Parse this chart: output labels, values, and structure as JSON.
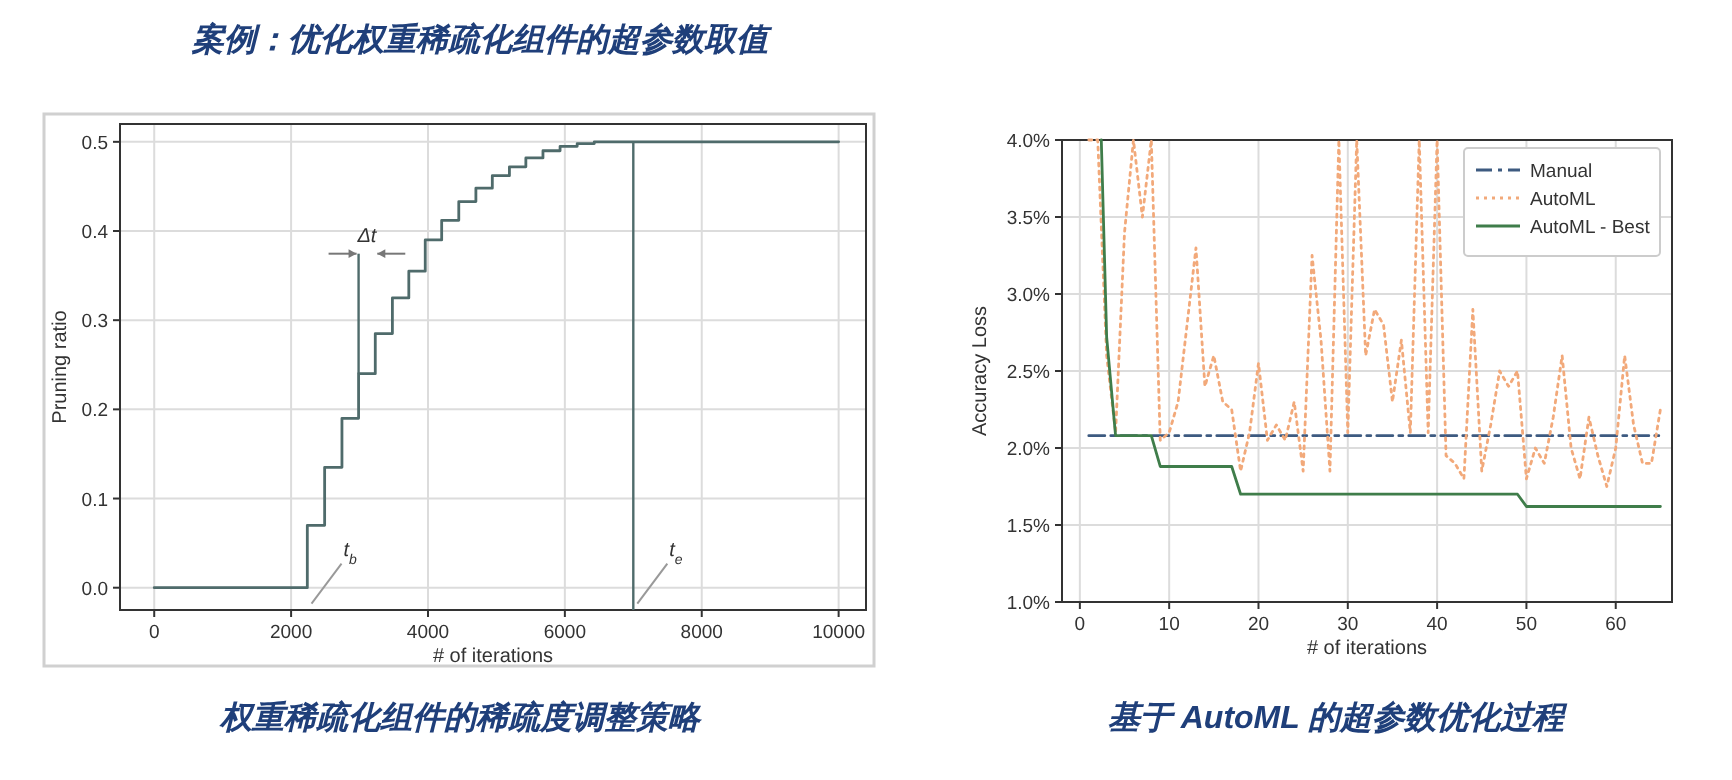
{
  "chart_data": [
    {
      "type": "step",
      "title": "案例：优化权重稀疏化组件的超参数取值",
      "subtitle": "权重稀疏化组件的稀疏度调整策略",
      "xlabel": "# of iterations",
      "ylabel": "Pruning ratio",
      "xlim": [
        -500,
        10400
      ],
      "ylim": [
        -0.025,
        0.52
      ],
      "xticks": [
        0,
        2000,
        4000,
        6000,
        8000,
        10000
      ],
      "yticks": [
        {
          "value": 0,
          "label": "0.0"
        },
        0.1,
        0.2,
        0.3,
        0.4,
        0.5
      ],
      "grid": true,
      "line_style": "solid",
      "series": [
        {
          "color": "#4f6b6b",
          "x": [
            0,
            2237,
            2490,
            2743,
            2986,
            3230,
            3480,
            3720,
            3960,
            4200,
            4450,
            4700,
            4940,
            5190,
            5430,
            5680,
            5930,
            6180,
            6430,
            10000
          ],
          "values": [
            0,
            0.07,
            0.135,
            0.19,
            0.24,
            0.285,
            0.325,
            0.355,
            0.39,
            0.412,
            0.433,
            0.448,
            0.462,
            0.472,
            0.482,
            0.49,
            0.495,
            0.498,
            0.5,
            0.5
          ]
        }
      ],
      "ref_lines": [
        {
          "axis": "x",
          "value": 7000,
          "color": "#4f6b6b"
        }
      ],
      "annotations": [
        {
          "text": "t$_{b}$",
          "x": 2240,
          "y": 0
        },
        {
          "text": "t$_{e}$",
          "x": 7000,
          "y": 0
        },
        {
          "text": "Δt",
          "x": 2986,
          "y": 0.24
        }
      ]
    },
    {
      "type": "line",
      "title": "基于 AutoML 的超参数优化过程",
      "xlabel": "# of iterations",
      "ylabel": "Accuracy Loss",
      "xlim": [
        -2,
        66.3
      ],
      "ylim": [
        1.0,
        4.0
      ],
      "xticks": [
        0,
        10,
        20,
        30,
        40,
        50,
        60
      ],
      "yticks": [
        {
          "value": 1.0,
          "label": "1.0%"
        },
        {
          "value": 1.5,
          "label": "1.5%"
        },
        {
          "value": 2.0,
          "label": "2.0%"
        },
        {
          "value": 2.5,
          "label": "2.5%"
        },
        {
          "value": 3.0,
          "label": "3.0%"
        },
        {
          "value": 3.5,
          "label": "3.5%"
        },
        {
          "value": 4.0,
          "label": "4.0%"
        }
      ],
      "grid": true,
      "legend": "top right",
      "series": [
        {
          "name": "Manual",
          "color": "#3d5a80",
          "line_style": "dashdot",
          "x": [
            1,
            65
          ],
          "values": [
            2.08,
            2.08
          ]
        },
        {
          "name": "AutoML",
          "color": "#f2a97a",
          "line_style": "dotted",
          "x": [
            1,
            2,
            3,
            4,
            5,
            6,
            7,
            8,
            9,
            10,
            11,
            12,
            13,
            14,
            15,
            16,
            17,
            18,
            19,
            20,
            21,
            22,
            23,
            24,
            25,
            26,
            27,
            28,
            29,
            30,
            31,
            32,
            33,
            34,
            35,
            36,
            37,
            38,
            39,
            40,
            41,
            42,
            43,
            44,
            45,
            46,
            47,
            48,
            49,
            50,
            51,
            52,
            53,
            54,
            55,
            56,
            57,
            58,
            59,
            60,
            61,
            62,
            63,
            64,
            65
          ],
          "values": [
            4.0,
            4.0,
            2.6,
            2.1,
            3.4,
            4.0,
            3.5,
            4.0,
            2.05,
            2.1,
            2.3,
            2.8,
            3.3,
            2.4,
            2.6,
            2.3,
            2.25,
            1.85,
            2.1,
            2.55,
            2.05,
            2.15,
            2.05,
            2.3,
            1.85,
            3.25,
            2.7,
            1.85,
            4.0,
            2.1,
            4.0,
            2.6,
            2.9,
            2.8,
            2.3,
            2.7,
            2.1,
            4.0,
            2.1,
            4.0,
            1.95,
            1.9,
            1.8,
            2.9,
            1.85,
            2.15,
            2.5,
            2.4,
            2.5,
            1.8,
            2.0,
            1.9,
            2.2,
            2.6,
            2.0,
            1.8,
            2.2,
            1.95,
            1.75,
            2.0,
            2.6,
            2.15,
            1.9,
            1.9,
            2.25
          ]
        },
        {
          "name": "AutoML - Best",
          "color": "#3f7d4a",
          "line_style": "solid",
          "x": [
            2.4,
            3,
            4,
            8,
            9,
            17,
            18,
            49,
            50,
            65
          ],
          "values": [
            4.0,
            2.72,
            2.08,
            2.08,
            1.88,
            1.88,
            1.7,
            1.7,
            1.62,
            1.62
          ]
        }
      ]
    }
  ]
}
